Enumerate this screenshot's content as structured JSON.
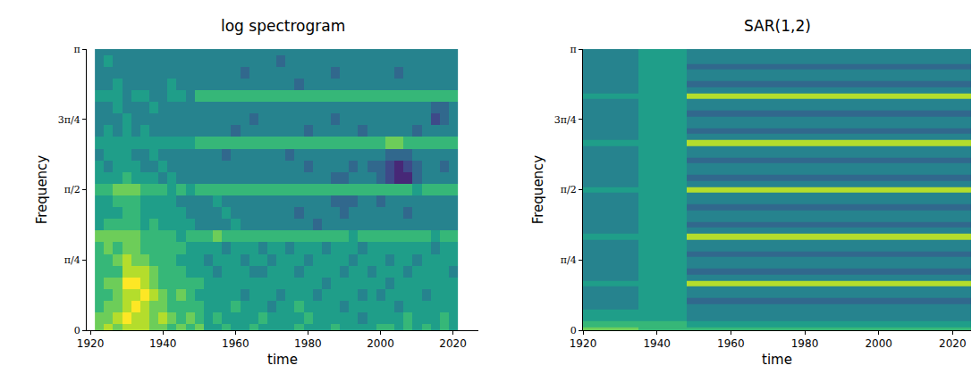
{
  "chart_data": [
    {
      "type": "heatmap",
      "title": "log spectrogram",
      "x_label": "time",
      "y_label": "Frequency",
      "xlim": [
        1919,
        2027
      ],
      "xticks": [
        1920,
        1940,
        1960,
        1980,
        2000,
        2020
      ],
      "ylim": [
        0,
        3.1416
      ],
      "yticks": [
        {
          "value": 0,
          "label": "0"
        },
        {
          "value": 0.7854,
          "label": "π/4"
        },
        {
          "value": 1.5708,
          "label": "π/2"
        },
        {
          "value": 2.3562,
          "label": "3π/4"
        },
        {
          "value": 3.1416,
          "label": "π"
        }
      ],
      "z_range": [
        0,
        9
      ],
      "x": [
        1922.5,
        1925,
        1927.5,
        1930,
        1932.5,
        1935,
        1937.5,
        1940,
        1942.5,
        1945,
        1947.5,
        1950,
        1952.5,
        1955,
        1957.5,
        1960,
        1962.5,
        1965,
        1967.5,
        1970,
        1972.5,
        1975,
        1977.5,
        1980,
        1982.5,
        1985,
        1987.5,
        1990,
        1992.5,
        1995,
        1997.5,
        2000,
        2002.5,
        2005,
        2007.5,
        2010,
        2012.5,
        2015,
        2017.5,
        2020
      ],
      "y": [
        0,
        0.1309,
        0.2618,
        0.3927,
        0.5236,
        0.6545,
        0.7854,
        0.9163,
        1.0472,
        1.1781,
        1.309,
        1.4399,
        1.5708,
        1.7017,
        1.8326,
        1.9635,
        2.0944,
        2.2253,
        2.3562,
        2.4871,
        2.618,
        2.7489,
        2.8798,
        3.0107,
        3.1416
      ],
      "z": [
        [
          7,
          8,
          7,
          8,
          8,
          8,
          7,
          7,
          6,
          7,
          6,
          7,
          5,
          5,
          6,
          5,
          5,
          6,
          5,
          5,
          5,
          5,
          6,
          5,
          5,
          5,
          6,
          5,
          5,
          5,
          5,
          6,
          6,
          5,
          6,
          5,
          6,
          5,
          6,
          5
        ],
        [
          7,
          7,
          8,
          9,
          8,
          8,
          7,
          8,
          7,
          6,
          7,
          6,
          5,
          6,
          5,
          5,
          5,
          5,
          6,
          5,
          5,
          5,
          5,
          6,
          5,
          5,
          5,
          5,
          5,
          4,
          5,
          5,
          5,
          5,
          6,
          5,
          5,
          5,
          6,
          5
        ],
        [
          6,
          7,
          7,
          8,
          9,
          8,
          7,
          7,
          6,
          6,
          6,
          6,
          5,
          5,
          5,
          6,
          5,
          5,
          5,
          4,
          5,
          5,
          6,
          5,
          5,
          5,
          5,
          4,
          5,
          5,
          5,
          5,
          5,
          4,
          5,
          5,
          5,
          5,
          5,
          5
        ],
        [
          6,
          6,
          7,
          8,
          8,
          9,
          8,
          7,
          6,
          7,
          6,
          5,
          5,
          5,
          5,
          5,
          4,
          5,
          5,
          5,
          4,
          5,
          5,
          5,
          4,
          5,
          5,
          5,
          5,
          4,
          5,
          4,
          5,
          5,
          5,
          5,
          4,
          5,
          5,
          5
        ],
        [
          6,
          7,
          7,
          9,
          9,
          8,
          7,
          6,
          6,
          6,
          6,
          6,
          5,
          5,
          5,
          5,
          5,
          5,
          5,
          5,
          5,
          5,
          5,
          5,
          5,
          4,
          5,
          5,
          5,
          5,
          5,
          5,
          4,
          5,
          5,
          5,
          5,
          5,
          5,
          5
        ],
        [
          6,
          6,
          6,
          8,
          8,
          8,
          7,
          6,
          6,
          6,
          5,
          5,
          5,
          4,
          5,
          5,
          5,
          4,
          4,
          5,
          5,
          5,
          4,
          5,
          5,
          5,
          5,
          4,
          5,
          5,
          4,
          5,
          5,
          5,
          4,
          5,
          5,
          5,
          5,
          4
        ],
        [
          6,
          6,
          7,
          8,
          7,
          7,
          6,
          6,
          6,
          5,
          5,
          5,
          4,
          5,
          5,
          5,
          4,
          5,
          5,
          4,
          5,
          5,
          5,
          4,
          5,
          5,
          5,
          5,
          4,
          5,
          5,
          5,
          4,
          5,
          5,
          4,
          5,
          5,
          5,
          5
        ],
        [
          6,
          7,
          6,
          7,
          7,
          6,
          6,
          6,
          6,
          6,
          5,
          5,
          5,
          5,
          4,
          5,
          5,
          5,
          4,
          5,
          5,
          4,
          5,
          5,
          5,
          4,
          5,
          5,
          5,
          4,
          5,
          5,
          5,
          5,
          5,
          5,
          5,
          4,
          5,
          5
        ],
        [
          7,
          7,
          7,
          7,
          7,
          6,
          6,
          6,
          6,
          5,
          6,
          6,
          6,
          7,
          6,
          6,
          6,
          6,
          6,
          6,
          6,
          6,
          6,
          6,
          6,
          6,
          6,
          6,
          5,
          6,
          6,
          6,
          6,
          6,
          6,
          6,
          6,
          5,
          6,
          6
        ],
        [
          5,
          6,
          6,
          6,
          6,
          5,
          6,
          5,
          5,
          5,
          5,
          4,
          4,
          4,
          4,
          5,
          4,
          4,
          4,
          4,
          4,
          4,
          4,
          4,
          3,
          4,
          4,
          4,
          4,
          4,
          4,
          4,
          4,
          4,
          4,
          4,
          4,
          4,
          4,
          4
        ],
        [
          5,
          5,
          5,
          6,
          6,
          5,
          5,
          5,
          5,
          5,
          4,
          4,
          4,
          4,
          5,
          4,
          4,
          4,
          4,
          4,
          4,
          4,
          3,
          4,
          4,
          4,
          4,
          3,
          4,
          4,
          4,
          4,
          4,
          4,
          3,
          4,
          4,
          4,
          4,
          4
        ],
        [
          5,
          5,
          6,
          6,
          6,
          5,
          5,
          5,
          5,
          4,
          4,
          4,
          4,
          5,
          4,
          4,
          4,
          4,
          4,
          4,
          4,
          4,
          4,
          4,
          4,
          4,
          3,
          3,
          3,
          4,
          4,
          3,
          4,
          4,
          4,
          4,
          4,
          4,
          4,
          4
        ],
        [
          6,
          6,
          7,
          7,
          7,
          6,
          6,
          6,
          5,
          6,
          5,
          6,
          6,
          6,
          6,
          6,
          6,
          6,
          6,
          6,
          6,
          6,
          6,
          6,
          6,
          6,
          6,
          6,
          6,
          6,
          6,
          6,
          6,
          6,
          6,
          5,
          6,
          6,
          6,
          6
        ],
        [
          5,
          5,
          5,
          6,
          5,
          5,
          5,
          4,
          5,
          4,
          4,
          4,
          4,
          4,
          4,
          4,
          4,
          4,
          4,
          4,
          4,
          4,
          4,
          4,
          4,
          4,
          3,
          3,
          4,
          4,
          4,
          3,
          2,
          1,
          1,
          3,
          4,
          4,
          4,
          4
        ],
        [
          5,
          4,
          5,
          5,
          5,
          4,
          4,
          5,
          4,
          4,
          4,
          4,
          4,
          4,
          4,
          4,
          4,
          4,
          4,
          4,
          4,
          4,
          4,
          3,
          4,
          4,
          4,
          4,
          3,
          4,
          3,
          3,
          2,
          1,
          2,
          3,
          4,
          4,
          3,
          4
        ],
        [
          4,
          5,
          5,
          5,
          4,
          4,
          5,
          4,
          4,
          4,
          4,
          4,
          4,
          4,
          3,
          4,
          4,
          4,
          4,
          4,
          4,
          3,
          4,
          4,
          4,
          4,
          4,
          4,
          4,
          4,
          4,
          4,
          3,
          3,
          3,
          4,
          4,
          4,
          4,
          4
        ],
        [
          5,
          5,
          5,
          5,
          5,
          5,
          5,
          5,
          5,
          5,
          5,
          6,
          6,
          6,
          6,
          6,
          6,
          6,
          6,
          6,
          6,
          6,
          6,
          6,
          6,
          6,
          6,
          6,
          6,
          6,
          6,
          6,
          7,
          7,
          6,
          6,
          6,
          6,
          6,
          6
        ],
        [
          4,
          5,
          4,
          5,
          4,
          5,
          4,
          4,
          4,
          4,
          4,
          4,
          4,
          4,
          4,
          3,
          4,
          4,
          4,
          4,
          4,
          4,
          4,
          3,
          4,
          4,
          4,
          4,
          4,
          3,
          4,
          4,
          4,
          4,
          4,
          3,
          4,
          4,
          4,
          4
        ],
        [
          4,
          4,
          4,
          5,
          4,
          4,
          4,
          4,
          4,
          4,
          4,
          4,
          4,
          4,
          4,
          4,
          4,
          3,
          4,
          4,
          4,
          4,
          4,
          4,
          4,
          4,
          3,
          4,
          4,
          4,
          4,
          4,
          4,
          4,
          4,
          4,
          4,
          2,
          3,
          4
        ],
        [
          4,
          4,
          5,
          4,
          4,
          4,
          5,
          4,
          4,
          4,
          4,
          4,
          4,
          4,
          4,
          4,
          4,
          4,
          4,
          4,
          4,
          4,
          4,
          4,
          4,
          4,
          4,
          4,
          4,
          4,
          4,
          4,
          4,
          4,
          4,
          4,
          4,
          3,
          3,
          4
        ],
        [
          5,
          5,
          5,
          4,
          5,
          5,
          4,
          4,
          5,
          5,
          4,
          6,
          6,
          6,
          6,
          6,
          6,
          6,
          6,
          6,
          6,
          6,
          6,
          6,
          6,
          6,
          6,
          6,
          6,
          6,
          6,
          6,
          6,
          6,
          6,
          6,
          6,
          6,
          6,
          6
        ],
        [
          4,
          4,
          5,
          4,
          4,
          4,
          4,
          4,
          5,
          4,
          4,
          4,
          4,
          4,
          4,
          4,
          4,
          4,
          4,
          4,
          4,
          4,
          3,
          4,
          4,
          4,
          4,
          4,
          4,
          4,
          4,
          4,
          4,
          4,
          4,
          4,
          4,
          4,
          4,
          4
        ],
        [
          4,
          4,
          4,
          4,
          4,
          4,
          4,
          4,
          4,
          4,
          4,
          4,
          4,
          4,
          4,
          4,
          3,
          4,
          4,
          4,
          4,
          4,
          4,
          4,
          4,
          4,
          3,
          4,
          4,
          4,
          4,
          4,
          4,
          3,
          4,
          4,
          4,
          4,
          4,
          4
        ],
        [
          4,
          5,
          4,
          4,
          4,
          4,
          4,
          4,
          4,
          4,
          4,
          4,
          4,
          4,
          4,
          4,
          4,
          4,
          4,
          4,
          3,
          4,
          4,
          4,
          4,
          4,
          4,
          4,
          4,
          4,
          4,
          4,
          4,
          4,
          4,
          4,
          4,
          4,
          4,
          4
        ],
        [
          4,
          4,
          4,
          4,
          4,
          4,
          4,
          4,
          4,
          4,
          4,
          4,
          4,
          4,
          4,
          4,
          4,
          4,
          4,
          4,
          4,
          4,
          4,
          4,
          4,
          4,
          4,
          4,
          4,
          4,
          4,
          4,
          4,
          4,
          4,
          4,
          4,
          4,
          4,
          4
        ]
      ]
    },
    {
      "type": "heatmap",
      "title": "SAR(1,2)",
      "x_label": "time",
      "y_label": "Frequency",
      "xlim": [
        1920,
        2025
      ],
      "xticks": [
        1920,
        1940,
        1960,
        1980,
        2000,
        2020
      ],
      "ylim": [
        0,
        3.1416
      ],
      "yticks": [
        {
          "value": 0,
          "label": "0"
        },
        {
          "value": 0.7854,
          "label": "π/4"
        },
        {
          "value": 1.5708,
          "label": "π/2"
        },
        {
          "value": 2.3562,
          "label": "3π/4"
        },
        {
          "value": 3.1416,
          "label": "π"
        }
      ],
      "z_range": [
        0,
        9
      ],
      "x": [
        1920,
        1935,
        1948,
        2025
      ],
      "y": [
        0,
        0.0654,
        0.1309,
        0.1963,
        0.2618,
        0.3272,
        0.3927,
        0.4581,
        0.5236,
        0.589,
        0.6545,
        0.7199,
        0.7854,
        0.8508,
        0.9163,
        0.9817,
        1.0472,
        1.1126,
        1.1781,
        1.2435,
        1.309,
        1.3744,
        1.4399,
        1.5053,
        1.5708,
        1.6362,
        1.7017,
        1.7671,
        1.8326,
        1.898,
        1.9635,
        2.0289,
        2.0944,
        2.1598,
        2.2253,
        2.2907,
        2.3562,
        2.4216,
        2.4871,
        2.5525,
        2.618,
        2.6834,
        2.7489,
        2.8143,
        2.8798,
        2.9452,
        3.0107,
        3.0761,
        3.1416
      ],
      "z": [
        [
          7,
          6,
          6
        ],
        [
          6,
          6,
          5
        ],
        [
          5,
          5,
          4
        ],
        [
          5,
          5,
          4
        ],
        [
          4,
          5,
          4
        ],
        [
          4,
          5,
          3
        ],
        [
          4,
          5,
          4
        ],
        [
          4,
          5,
          4
        ],
        [
          5,
          5,
          8
        ],
        [
          4,
          5,
          4
        ],
        [
          4,
          5,
          3
        ],
        [
          4,
          5,
          4
        ],
        [
          4,
          5,
          4
        ],
        [
          4,
          5,
          3
        ],
        [
          4,
          5,
          4
        ],
        [
          4,
          5,
          4
        ],
        [
          5,
          5,
          8
        ],
        [
          4,
          5,
          4
        ],
        [
          4,
          5,
          3
        ],
        [
          4,
          5,
          4
        ],
        [
          4,
          5,
          4
        ],
        [
          4,
          5,
          3
        ],
        [
          4,
          5,
          4
        ],
        [
          4,
          5,
          4
        ],
        [
          5,
          5,
          8
        ],
        [
          4,
          5,
          4
        ],
        [
          4,
          5,
          3
        ],
        [
          4,
          5,
          4
        ],
        [
          4,
          5,
          4
        ],
        [
          4,
          5,
          3
        ],
        [
          4,
          5,
          4
        ],
        [
          4,
          5,
          4
        ],
        [
          5,
          5,
          8
        ],
        [
          4,
          5,
          4
        ],
        [
          4,
          5,
          3
        ],
        [
          4,
          5,
          4
        ],
        [
          4,
          5,
          4
        ],
        [
          4,
          5,
          3
        ],
        [
          4,
          5,
          4
        ],
        [
          4,
          5,
          4
        ],
        [
          5,
          5,
          8
        ],
        [
          4,
          5,
          4
        ],
        [
          4,
          5,
          3
        ],
        [
          4,
          5,
          4
        ],
        [
          4,
          5,
          4
        ],
        [
          4,
          5,
          3
        ],
        [
          4,
          5,
          4
        ],
        [
          4,
          5,
          4
        ],
        [
          4,
          5,
          4
        ]
      ]
    }
  ]
}
